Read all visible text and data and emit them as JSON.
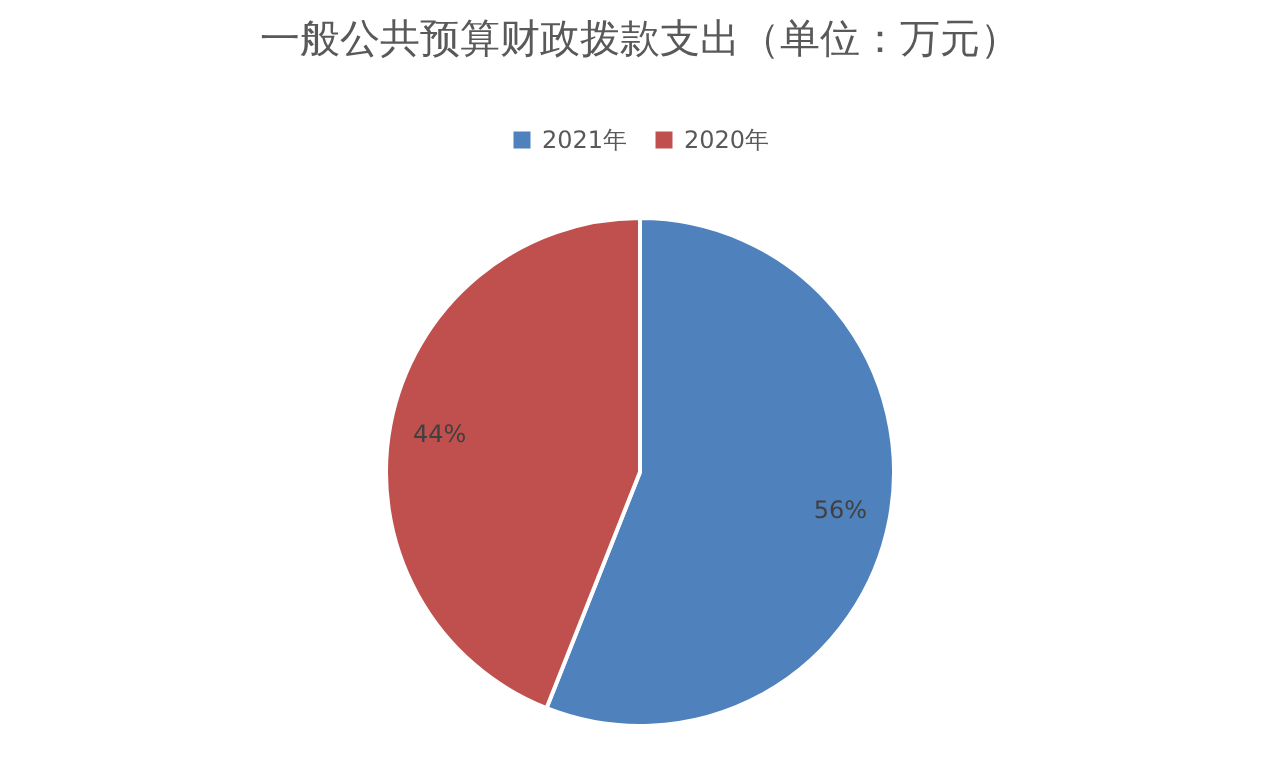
{
  "chart_data": {
    "type": "pie",
    "title": "一般公共预算财政拨款支出（单位：万元）",
    "categories": [
      "2021年",
      "2020年"
    ],
    "values": [
      56,
      44
    ],
    "colors": [
      "#4f81bd",
      "#c0504d"
    ],
    "value_labels": [
      "56%",
      "44%"
    ],
    "legend": "top"
  }
}
